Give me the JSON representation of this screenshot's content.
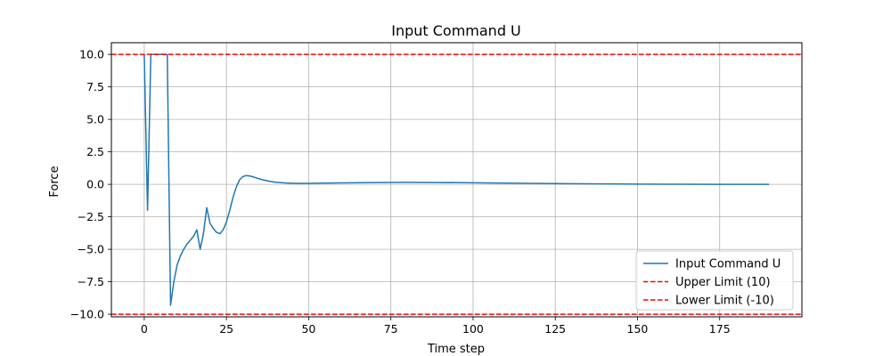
{
  "chart_data": {
    "type": "line",
    "title": "Input Command U",
    "xlabel": "Time step",
    "ylabel": "Force",
    "xlim": [
      -10,
      200
    ],
    "ylim": [
      -10.2,
      10.9
    ],
    "xticks": [
      0,
      25,
      50,
      75,
      100,
      125,
      150,
      175
    ],
    "xtick_labels": [
      "0",
      "25",
      "50",
      "75",
      "100",
      "125",
      "150",
      "175"
    ],
    "yticks": [
      -10,
      -7.5,
      -5,
      -2.5,
      0,
      2.5,
      5,
      7.5,
      10
    ],
    "ytick_labels": [
      "−10.0",
      "−7.5",
      "−5.0",
      "−2.5",
      "0.0",
      "2.5",
      "5.0",
      "7.5",
      "10.0"
    ],
    "grid": true,
    "legend_position": "bottom-right",
    "series": [
      {
        "name": "Input Command U",
        "color": "#1f77b4",
        "style": "solid",
        "x": [
          0,
          1,
          2,
          3,
          4,
          5,
          6,
          7,
          8,
          9,
          10,
          11,
          12,
          13,
          14,
          15,
          16,
          17,
          18,
          19,
          20,
          21,
          22,
          23,
          24,
          25,
          26,
          27,
          28,
          29,
          30,
          31,
          32,
          33,
          34,
          35,
          36,
          38,
          40,
          43,
          46,
          50,
          55,
          60,
          70,
          80,
          90,
          100,
          110,
          125,
          140,
          150,
          160,
          175,
          190
        ],
        "y": [
          10,
          -2,
          10,
          10,
          10,
          10,
          10,
          10,
          -9.3,
          -7.5,
          -6.2,
          -5.5,
          -5.0,
          -4.6,
          -4.3,
          -4.0,
          -3.5,
          -5.0,
          -3.8,
          -1.8,
          -3.0,
          -3.4,
          -3.7,
          -3.8,
          -3.5,
          -2.9,
          -2.0,
          -1.0,
          -0.2,
          0.35,
          0.6,
          0.67,
          0.65,
          0.58,
          0.5,
          0.42,
          0.35,
          0.24,
          0.16,
          0.1,
          0.08,
          0.08,
          0.09,
          0.11,
          0.14,
          0.15,
          0.14,
          0.12,
          0.09,
          0.06,
          0.03,
          0.02,
          0.01,
          0.0,
          0.0
        ]
      },
      {
        "name": "Upper Limit (10)",
        "color": "#ff0000",
        "style": "dashed",
        "hline": 10
      },
      {
        "name": "Lower Limit (-10)",
        "color": "#ff0000",
        "style": "dashed",
        "hline": -10
      }
    ]
  }
}
